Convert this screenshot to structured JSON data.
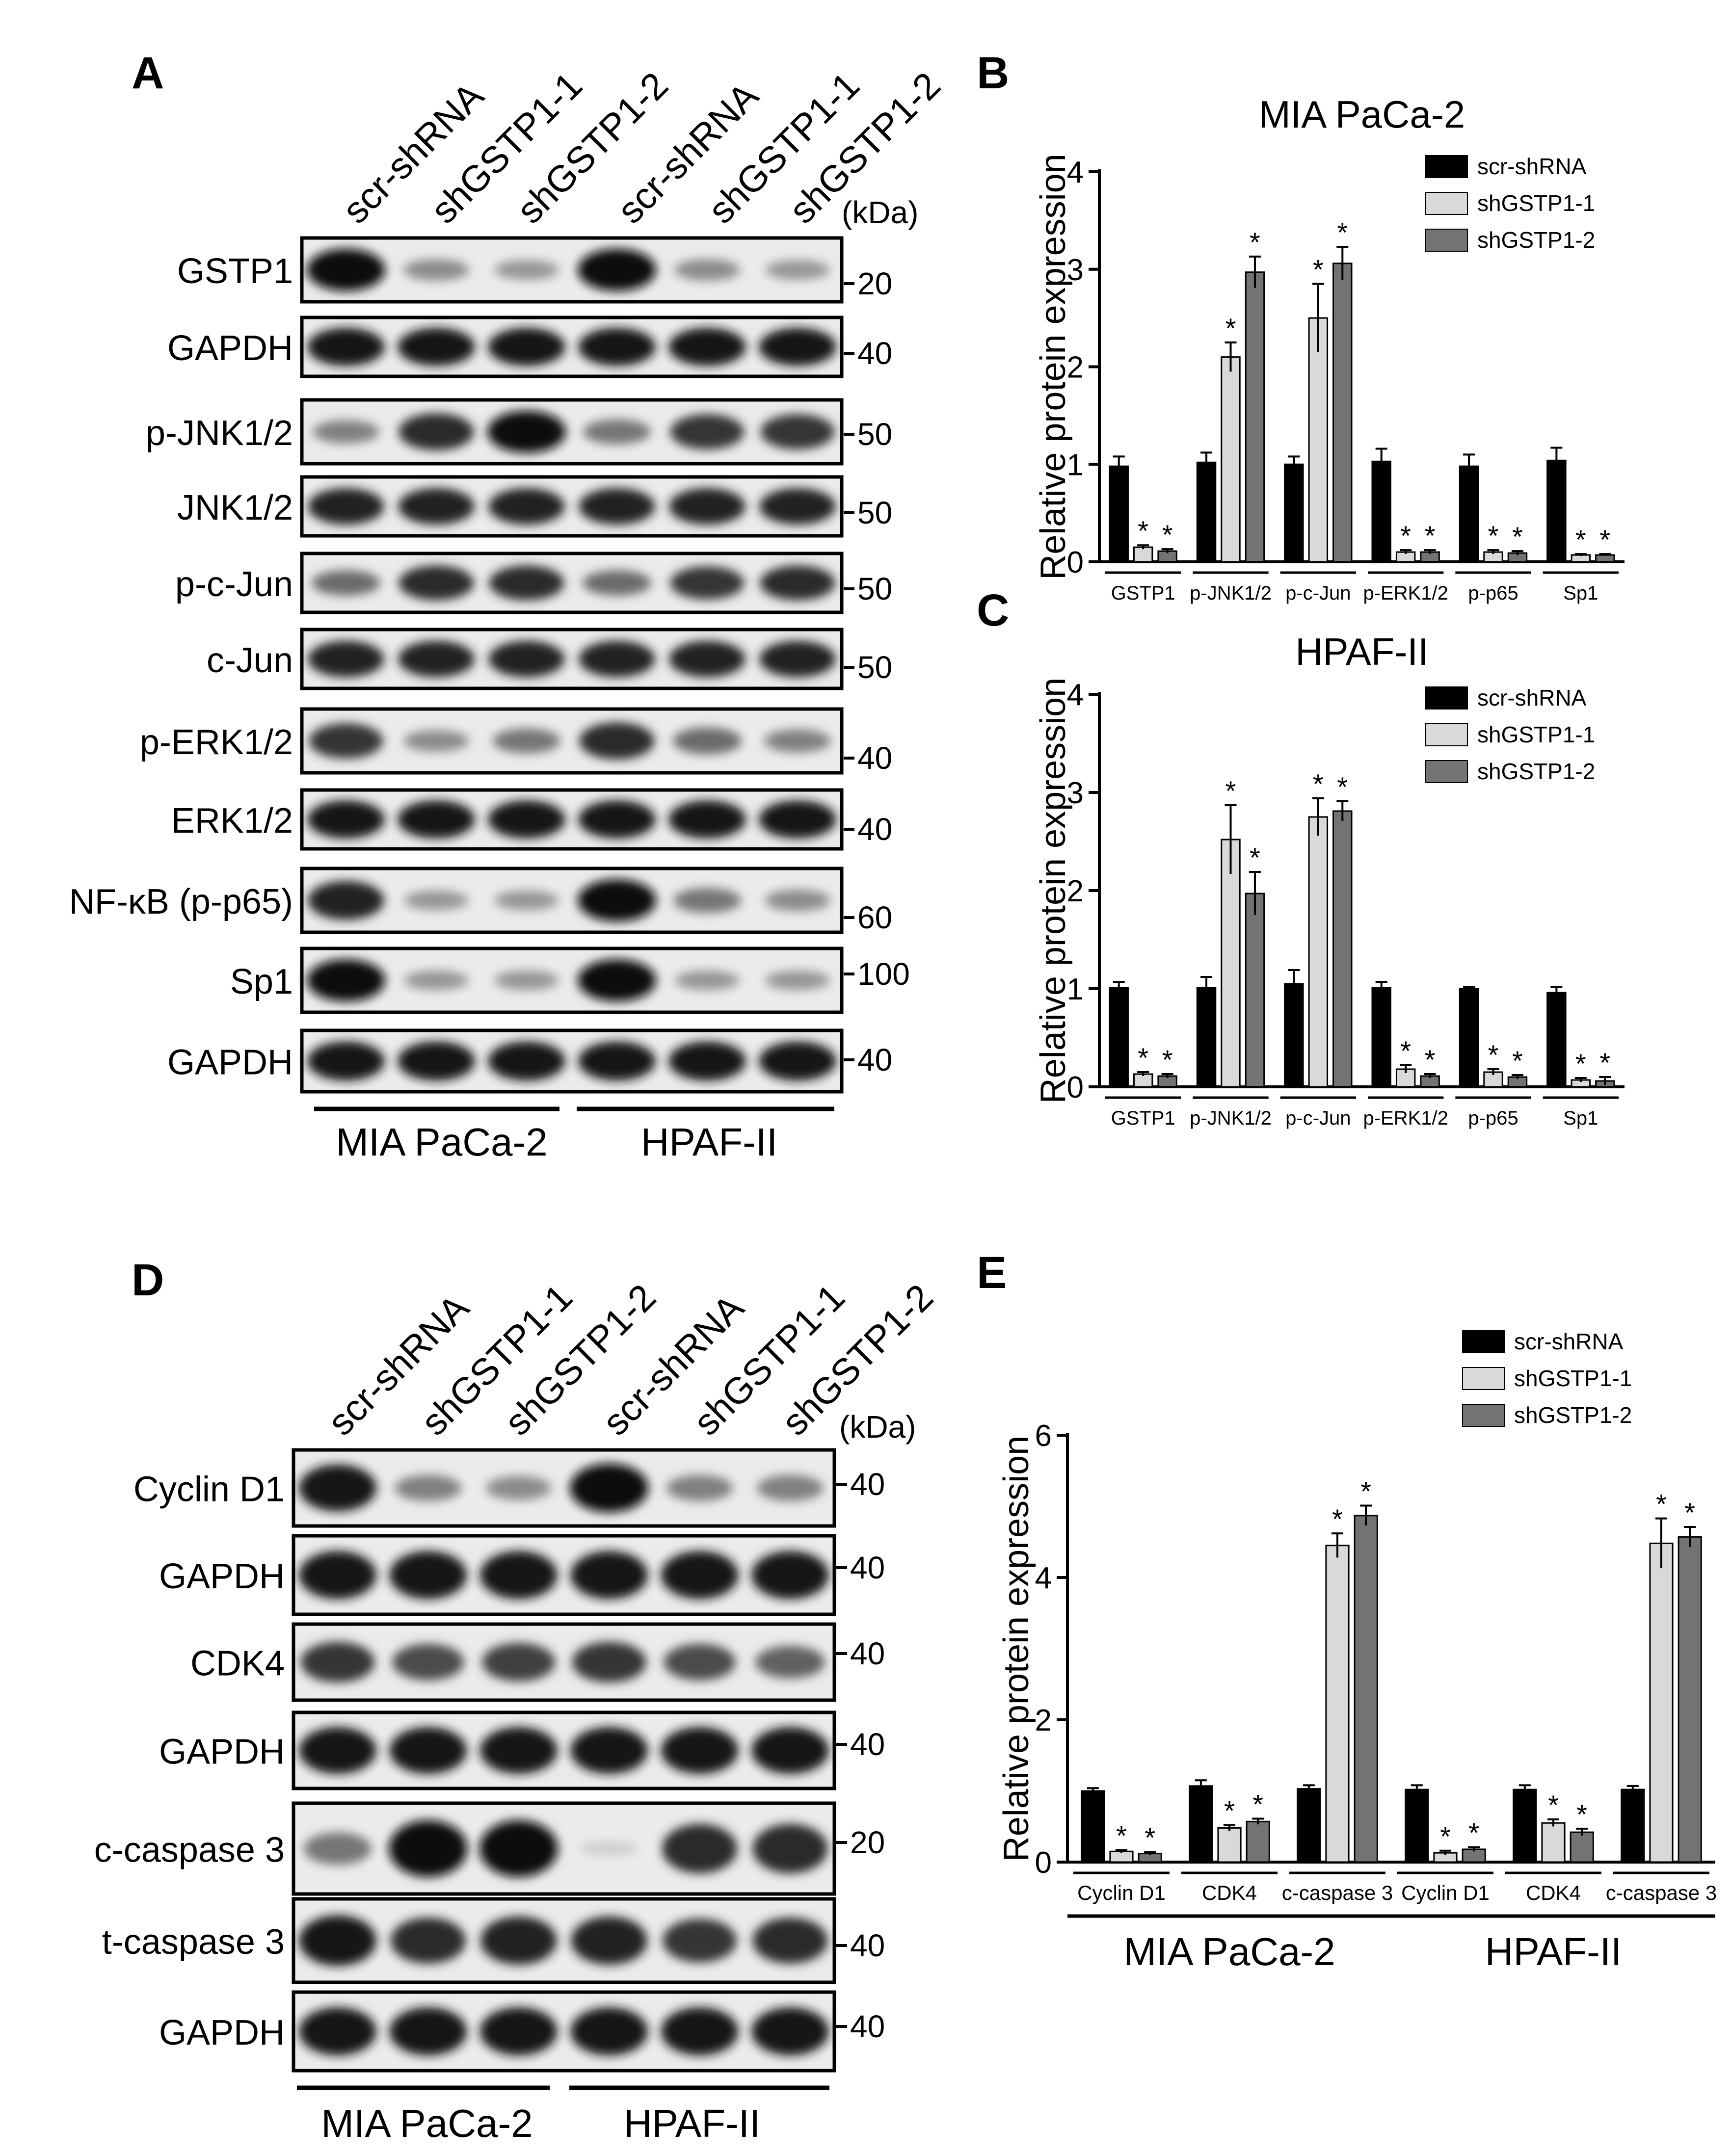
{
  "panels": {
    "A": {
      "letter": "A",
      "lanes": [
        "scr-shRNA",
        "shGSTP1-1",
        "shGSTP1-2",
        "scr-shRNA",
        "shGSTP1-1",
        "shGSTP1-2"
      ],
      "kda_header": "(kDa)",
      "blots": [
        {
          "label": "GSTP1",
          "kda": "20",
          "bands": [
            1.0,
            0.4,
            0.35,
            1.0,
            0.4,
            0.35
          ]
        },
        {
          "label": "GAPDH",
          "kda": "40",
          "bands": [
            0.95,
            0.95,
            0.95,
            0.95,
            0.95,
            0.95
          ]
        },
        {
          "label": "p-JNK1/2",
          "kda": "50",
          "bands": [
            0.45,
            0.85,
            1.0,
            0.5,
            0.8,
            0.8
          ]
        },
        {
          "label": "JNK1/2",
          "kda": "50",
          "bands": [
            0.9,
            0.9,
            0.9,
            0.9,
            0.9,
            0.9
          ]
        },
        {
          "label": "p-c-Jun",
          "kda": "50",
          "bands": [
            0.55,
            0.85,
            0.85,
            0.55,
            0.8,
            0.85
          ]
        },
        {
          "label": "c-Jun",
          "kda": "50",
          "bands": [
            0.9,
            0.9,
            0.9,
            0.9,
            0.9,
            0.9
          ]
        },
        {
          "label": "p-ERK1/2",
          "kda": "40",
          "bands": [
            0.8,
            0.4,
            0.5,
            0.85,
            0.55,
            0.45
          ]
        },
        {
          "label": "ERK1/2",
          "kda": "40",
          "bands": [
            0.95,
            0.95,
            0.95,
            0.95,
            0.95,
            0.95
          ]
        },
        {
          "label": "NF-κB (p-p65)",
          "kda": "60",
          "bands": [
            0.9,
            0.35,
            0.35,
            1.0,
            0.5,
            0.4
          ]
        },
        {
          "label": "Sp1",
          "kda": "100",
          "bands": [
            1.0,
            0.35,
            0.35,
            1.0,
            0.35,
            0.35
          ]
        },
        {
          "label": "GAPDH",
          "kda": "40",
          "bands": [
            0.95,
            0.95,
            0.95,
            0.95,
            0.95,
            0.95
          ]
        }
      ],
      "groups": [
        "MIA PaCa-2",
        "HPAF-II"
      ]
    },
    "D": {
      "letter": "D",
      "lanes": [
        "scr-shRNA",
        "shGSTP1-1",
        "shGSTP1-2",
        "scr-shRNA",
        "shGSTP1-1",
        "shGSTP1-2"
      ],
      "kda_header": "(kDa)",
      "blots": [
        {
          "label": "Cyclin D1",
          "kda": "40",
          "bands": [
            0.95,
            0.45,
            0.4,
            1.0,
            0.45,
            0.45
          ]
        },
        {
          "label": "GAPDH",
          "kda": "40",
          "bands": [
            0.95,
            0.95,
            0.95,
            0.95,
            0.95,
            0.95
          ]
        },
        {
          "label": "CDK4",
          "kda": "40",
          "bands": [
            0.8,
            0.7,
            0.75,
            0.8,
            0.7,
            0.6
          ]
        },
        {
          "label": "GAPDH",
          "kda": "40",
          "bands": [
            0.95,
            0.95,
            0.95,
            0.95,
            0.95,
            0.95
          ]
        },
        {
          "label": "c-caspase 3",
          "kda": "20",
          "bands": [
            0.5,
            1.0,
            1.0,
            0.1,
            0.85,
            0.85
          ]
        },
        {
          "label": "t-caspase 3",
          "kda": "40",
          "bands": [
            0.95,
            0.85,
            0.9,
            0.9,
            0.8,
            0.85
          ]
        },
        {
          "label": "GAPDH",
          "kda": "40",
          "bands": [
            0.95,
            0.95,
            0.95,
            0.95,
            0.95,
            0.95
          ]
        }
      ],
      "groups": [
        "MIA PaCa-2",
        "HPAF-II"
      ]
    }
  },
  "chart_data": [
    {
      "panel": "B",
      "type": "bar",
      "title": "MIA PaCa-2",
      "ylabel": "Relative protein expression",
      "xlabel": "",
      "ylim": [
        0,
        4
      ],
      "yticks": [
        "0",
        "1",
        "2",
        "3",
        "4"
      ],
      "categories": [
        "GSTP1",
        "p-JNK1/2",
        "p-c-Jun",
        "p-ERK1/2",
        "p-p65",
        "Sp1"
      ],
      "series": [
        {
          "name": "scr-shRNA",
          "color": "#000000",
          "values": [
            0.98,
            1.02,
            1.0,
            1.03,
            0.98,
            1.04
          ],
          "errors": [
            0.1,
            0.1,
            0.08,
            0.13,
            0.12,
            0.13
          ],
          "sig": [
            false,
            false,
            false,
            false,
            false,
            false
          ]
        },
        {
          "name": "shGSTP1-1",
          "color": "#d9d9d9",
          "values": [
            0.15,
            2.1,
            2.5,
            0.1,
            0.1,
            0.07
          ],
          "errors": [
            0.02,
            0.15,
            0.35,
            0.02,
            0.02,
            0.01
          ],
          "sig": [
            true,
            true,
            true,
            true,
            true,
            true
          ]
        },
        {
          "name": "shGSTP1-2",
          "color": "#737373",
          "values": [
            0.11,
            2.97,
            3.06,
            0.1,
            0.09,
            0.07
          ],
          "errors": [
            0.02,
            0.16,
            0.17,
            0.02,
            0.02,
            0.01
          ],
          "sig": [
            true,
            true,
            true,
            true,
            true,
            true
          ]
        }
      ],
      "sig_marker": "*",
      "legend": "top-right"
    },
    {
      "panel": "C",
      "type": "bar",
      "title": "HPAF-II",
      "ylabel": "Relative protein expression",
      "xlabel": "",
      "ylim": [
        0,
        4
      ],
      "yticks": [
        "0",
        "1",
        "2",
        "3",
        "4"
      ],
      "categories": [
        "GSTP1",
        "p-JNK1/2",
        "p-c-Jun",
        "p-ERK1/2",
        "p-p65",
        "Sp1"
      ],
      "series": [
        {
          "name": "scr-shRNA",
          "color": "#000000",
          "values": [
            1.01,
            1.01,
            1.05,
            1.01,
            1.0,
            0.96
          ],
          "errors": [
            0.06,
            0.11,
            0.14,
            0.06,
            0.02,
            0.06
          ],
          "sig": [
            false,
            false,
            false,
            false,
            false,
            false
          ]
        },
        {
          "name": "shGSTP1-1",
          "color": "#d9d9d9",
          "values": [
            0.13,
            2.52,
            2.75,
            0.18,
            0.15,
            0.07
          ],
          "errors": [
            0.02,
            0.35,
            0.19,
            0.04,
            0.03,
            0.02
          ],
          "sig": [
            true,
            true,
            true,
            true,
            true,
            true
          ]
        },
        {
          "name": "shGSTP1-2",
          "color": "#737373",
          "values": [
            0.11,
            1.97,
            2.81,
            0.11,
            0.1,
            0.06
          ],
          "errors": [
            0.02,
            0.22,
            0.1,
            0.02,
            0.02,
            0.04
          ],
          "sig": [
            true,
            true,
            true,
            true,
            true,
            true
          ]
        }
      ],
      "sig_marker": "*",
      "legend": "top-right"
    },
    {
      "panel": "E",
      "type": "bar",
      "title": "",
      "ylabel": "Relative protein expression",
      "xlabel": "",
      "ylim": [
        0,
        6
      ],
      "yticks": [
        "0",
        "2",
        "4",
        "6"
      ],
      "categories": [
        "Cyclin D1",
        "CDK4",
        "c-caspase 3",
        "Cyclin D1",
        "CDK4",
        "c-caspase 3"
      ],
      "groups": [
        {
          "label": "MIA PaCa-2",
          "categories": [
            0,
            1,
            2
          ]
        },
        {
          "label": "HPAF-II",
          "categories": [
            3,
            4,
            5
          ]
        }
      ],
      "series": [
        {
          "name": "scr-shRNA",
          "color": "#000000",
          "values": [
            1.0,
            1.07,
            1.03,
            1.02,
            1.02,
            1.02
          ],
          "errors": [
            0.04,
            0.08,
            0.05,
            0.06,
            0.06,
            0.05
          ],
          "sig": [
            false,
            false,
            false,
            false,
            false,
            false
          ]
        },
        {
          "name": "shGSTP1-1",
          "color": "#d9d9d9",
          "values": [
            0.15,
            0.48,
            4.45,
            0.13,
            0.55,
            4.48
          ],
          "errors": [
            0.02,
            0.04,
            0.17,
            0.03,
            0.05,
            0.35
          ],
          "sig": [
            true,
            true,
            true,
            true,
            true,
            true
          ]
        },
        {
          "name": "shGSTP1-2",
          "color": "#737373",
          "values": [
            0.12,
            0.57,
            4.87,
            0.18,
            0.42,
            4.57
          ],
          "errors": [
            0.02,
            0.04,
            0.14,
            0.03,
            0.05,
            0.14
          ],
          "sig": [
            true,
            true,
            true,
            true,
            true,
            true
          ]
        }
      ],
      "sig_marker": "*",
      "legend": "top-right"
    }
  ]
}
